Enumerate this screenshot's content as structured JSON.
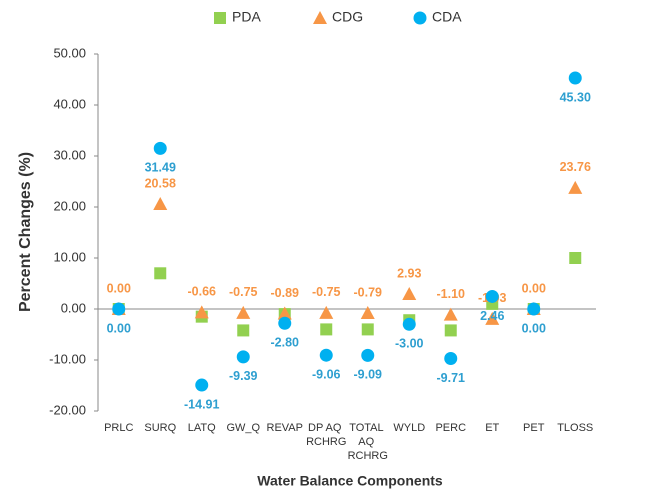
{
  "chart_data": {
    "type": "scatter",
    "y_label": "Percent Changes (%)",
    "x_label": "Water Balance Components",
    "categories": [
      "PRLC",
      "SURQ",
      "LATQ",
      "GW_Q",
      "REVAP",
      "DP AQ RCHRG",
      "TOTAL AQ RCHRG",
      "WYLD",
      "PERC",
      "ET",
      "PET",
      "TLOSS"
    ],
    "series": [
      {
        "name": "PDA",
        "color": "#92d050",
        "marker": "square",
        "values": [
          0,
          7.0,
          -1.5,
          -4.2,
          -1.0,
          -4.0,
          -4.0,
          -2.2,
          -4.2,
          1.0,
          0,
          10.0
        ]
      },
      {
        "name": "CDG",
        "color": "#f79646",
        "marker": "triangle",
        "label_color": "#f79646",
        "values": [
          0,
          20.58,
          -0.66,
          -0.75,
          -0.89,
          -0.75,
          -0.79,
          2.93,
          -1.1,
          -1.93,
          0,
          23.76
        ],
        "value_labels": [
          "0.00",
          "20.58",
          "-0.66",
          "-0.75",
          "-0.89",
          "-0.75",
          "-0.79",
          "2.93",
          "-1.10",
          "-1.93",
          "0.00",
          "23.76"
        ]
      },
      {
        "name": "CDA",
        "color": "#00b0f0",
        "marker": "circle",
        "label_color": "#2e9fd0",
        "values": [
          0,
          31.49,
          -14.91,
          -9.39,
          -2.8,
          -9.06,
          -9.09,
          -3.0,
          -9.71,
          2.46,
          0,
          45.3
        ],
        "value_labels": [
          "0.00",
          "31.49",
          "-14.91",
          "-9.39",
          "-2.80",
          "-9.06",
          "-9.09",
          "-3.00",
          "-9.71",
          "2.46",
          "0.00",
          "45.30"
        ]
      }
    ],
    "ylim": [
      -20,
      50
    ],
    "yticks": [
      {
        "value": -20,
        "label": "-20.00"
      },
      {
        "value": -10,
        "label": "-10.00"
      },
      {
        "value": 0,
        "label": "0.00"
      },
      {
        "value": 10,
        "label": "10.00"
      },
      {
        "value": 20,
        "label": "20.00"
      },
      {
        "value": 30,
        "label": "30.00"
      },
      {
        "value": 40,
        "label": "40.00"
      },
      {
        "value": 50,
        "label": "50.00"
      }
    ],
    "legend": "top"
  }
}
